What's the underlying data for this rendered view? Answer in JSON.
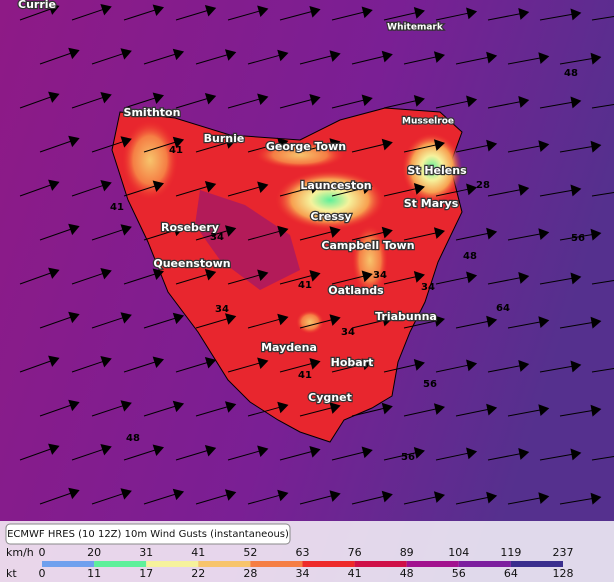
{
  "map": {
    "places": [
      "Currie",
      "Whitemark",
      "Musselroe",
      "Smithton",
      "Burnie",
      "George Town",
      "St Helens",
      "Launceston",
      "St Marys",
      "Cressy",
      "Rosebery",
      "Campbell Town",
      "Queenstown",
      "Oatlands",
      "Triabunna",
      "Maydena",
      "Hobart",
      "Cygnet"
    ],
    "contour_labels": [
      48,
      41,
      41,
      34,
      28,
      56,
      48,
      34,
      41,
      34,
      64,
      34,
      34,
      41,
      56,
      48,
      56
    ]
  },
  "legend": {
    "title": "ECMWF HRES (10 12Z) 10m Wind Gusts (instantaneous)",
    "unit_kmh": "km/h",
    "unit_kt": "kt",
    "kmh": [
      0,
      20,
      31,
      41,
      52,
      63,
      76,
      89,
      104,
      119,
      237
    ],
    "kt": [
      0,
      11,
      17,
      22,
      28,
      34,
      41,
      48,
      56,
      64,
      128
    ],
    "colors": [
      "#6fa0ee",
      "#5ef09a",
      "#f6f29c",
      "#f7c46c",
      "#f57e44",
      "#ee2a2a",
      "#cf1048",
      "#a2128e",
      "#7c1f9e",
      "#3a2e8e"
    ]
  }
}
